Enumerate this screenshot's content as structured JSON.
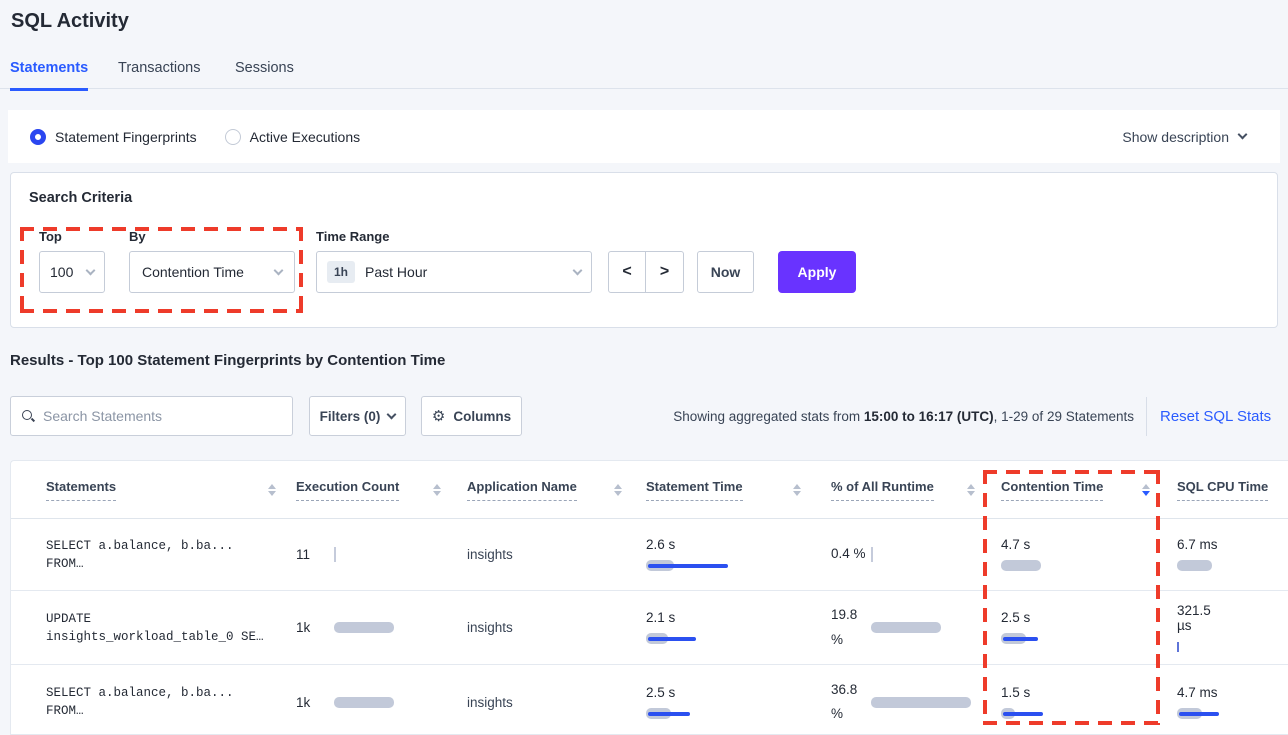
{
  "page": {
    "title": "SQL Activity"
  },
  "tabs": [
    {
      "label": "Statements",
      "active": true
    },
    {
      "label": "Transactions",
      "active": false
    },
    {
      "label": "Sessions",
      "active": false
    }
  ],
  "view_toggle": {
    "options": [
      {
        "label": "Statement Fingerprints",
        "selected": true
      },
      {
        "label": "Active Executions",
        "selected": false
      }
    ],
    "show_description": "Show description"
  },
  "search_criteria": {
    "title": "Search Criteria",
    "top": {
      "label": "Top",
      "value": "100"
    },
    "by": {
      "label": "By",
      "value": "Contention Time"
    },
    "time_range": {
      "label": "Time Range",
      "badge": "1h",
      "value": "Past Hour"
    },
    "prev_label": "<",
    "next_label": ">",
    "now_label": "Now",
    "apply_label": "Apply"
  },
  "results": {
    "heading": "Results - Top 100 Statement Fingerprints by Contention Time",
    "search_placeholder": "Search Statements",
    "filters_label": "Filters (0)",
    "columns_label": "Columns",
    "gear_icon": "⚙",
    "stats_prefix": "Showing aggregated stats from ",
    "stats_range": "15:00 to 16:17 (UTC)",
    "stats_suffix": ", 1-29 of 29 Statements",
    "reset_link": "Reset SQL Stats"
  },
  "table": {
    "columns": [
      {
        "label": "Statements",
        "sortable": true
      },
      {
        "label": "Execution Count",
        "sortable": true
      },
      {
        "label": "Application Name",
        "sortable": true
      },
      {
        "label": "Statement Time",
        "sortable": true
      },
      {
        "label": "% of All Runtime",
        "sortable": true
      },
      {
        "label": "Contention Time",
        "sortable": true,
        "sorted": "desc"
      },
      {
        "label": "SQL CPU Time",
        "sortable": false
      }
    ],
    "rows": [
      {
        "statement": [
          "SELECT a.balance, b.ba...",
          "FROM…"
        ],
        "execution_count": {
          "text": "11",
          "tick": "gray"
        },
        "application_name": "insights",
        "statement_time": {
          "text": "2.6 s",
          "gray": 28,
          "blue": 80
        },
        "pct_runtime": {
          "text": "0.4 %",
          "tick": "gray"
        },
        "contention_time": {
          "text": "4.7 s",
          "gray": 40
        },
        "sql_cpu_time": {
          "text": "6.7 ms",
          "gray": 35
        }
      },
      {
        "statement": [
          "UPDATE",
          "insights_workload_table_0 SE…"
        ],
        "execution_count": {
          "text": "1k",
          "gray": 60
        },
        "application_name": "insights",
        "statement_time": {
          "text": "2.1 s",
          "gray": 22,
          "blue": 48
        },
        "pct_runtime": {
          "text": "19.8 %",
          "gray": 70
        },
        "contention_time": {
          "text": "2.5 s",
          "gray": 25,
          "blue": 35
        },
        "sql_cpu_time": {
          "text": "321.5 µs",
          "tick": "blue"
        }
      },
      {
        "statement": [
          "SELECT a.balance, b.ba...",
          "FROM…"
        ],
        "execution_count": {
          "text": "1k",
          "gray": 60
        },
        "application_name": "insights",
        "statement_time": {
          "text": "2.5 s",
          "gray": 25,
          "blue": 42
        },
        "pct_runtime": {
          "text": "36.8 %",
          "gray": 100
        },
        "contention_time": {
          "text": "1.5 s",
          "gray": 14,
          "blue": 40
        },
        "sql_cpu_time": {
          "text": "4.7 ms",
          "gray": 25,
          "blue": 40
        }
      }
    ]
  },
  "colors": {
    "accent_blue": "#2a5bff",
    "bar_gray": "#c2c9d9",
    "bar_blue": "#2b50f0",
    "purple": "#6933ff",
    "red": "#ee3b2a"
  }
}
